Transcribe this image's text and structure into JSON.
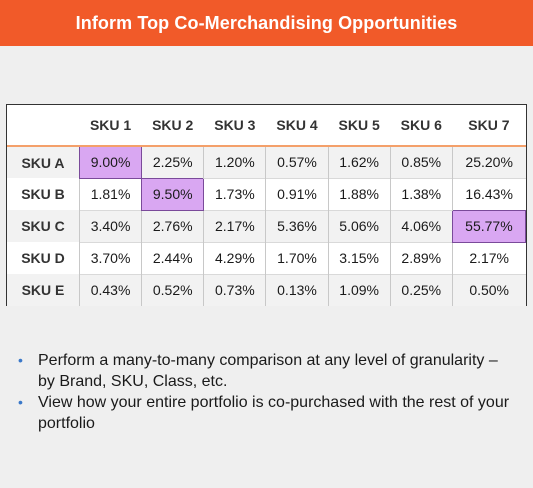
{
  "title": "Inform Top Co-Merchandising Opportunities",
  "colors": {
    "header_bg": "#f15a29",
    "highlight": "#d9a7f2",
    "bullet": "#3a78c9"
  },
  "table": {
    "columns": [
      "SKU 1",
      "SKU 2",
      "SKU 3",
      "SKU 4",
      "SKU 5",
      "SKU 6",
      "SKU 7"
    ],
    "rows": [
      {
        "label": "SKU A",
        "cells": [
          "9.00%",
          "2.25%",
          "1.20%",
          "0.57%",
          "1.62%",
          "0.85%",
          "25.20%"
        ],
        "highlight": [
          0
        ]
      },
      {
        "label": "SKU B",
        "cells": [
          "1.81%",
          "9.50%",
          "1.73%",
          "0.91%",
          "1.88%",
          "1.38%",
          "16.43%"
        ],
        "highlight": [
          1
        ]
      },
      {
        "label": "SKU C",
        "cells": [
          "3.40%",
          "2.76%",
          "2.17%",
          "5.36%",
          "5.06%",
          "4.06%",
          "55.77%"
        ],
        "highlight": [
          6
        ]
      },
      {
        "label": "SKU D",
        "cells": [
          "3.70%",
          "2.44%",
          "4.29%",
          "1.70%",
          "3.15%",
          "2.89%",
          "2.17%"
        ],
        "highlight": []
      },
      {
        "label": "SKU E",
        "cells": [
          "0.43%",
          "0.52%",
          "0.73%",
          "0.13%",
          "1.09%",
          "0.25%",
          "0.50%"
        ],
        "highlight": []
      }
    ]
  },
  "bullets": [
    "Perform a many-to-many comparison at any level of granularity – by Brand, SKU, Class, etc.",
    "View how your entire portfolio is co-purchased with the rest of your portfolio"
  ],
  "bullet_glyph": "•"
}
